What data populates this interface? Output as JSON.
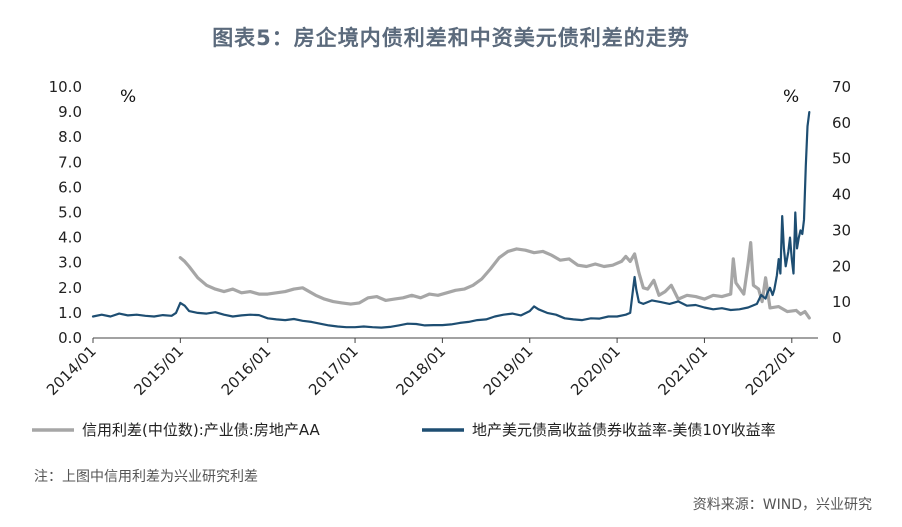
{
  "title": "图表5：房企境内债利差和中资美元债利差的走势",
  "note": "注：上图中信用利差为兴业研究利差",
  "source": "资料来源：WIND，兴业研究",
  "chart_data": {
    "type": "line",
    "left_unit": "%",
    "right_unit": "%",
    "y_left": {
      "range": [
        0,
        10
      ],
      "ticks": [
        "0.0",
        "1.0",
        "2.0",
        "3.0",
        "4.0",
        "5.0",
        "6.0",
        "7.0",
        "8.0",
        "9.0",
        "10.0"
      ]
    },
    "y_right": {
      "range": [
        0,
        70
      ],
      "ticks": [
        "0",
        "10",
        "20",
        "30",
        "40",
        "50",
        "60",
        "70"
      ]
    },
    "x_ticks": [
      {
        "label": "2014/01",
        "t": 2014.0
      },
      {
        "label": "2015/01",
        "t": 2015.0
      },
      {
        "label": "2016/01",
        "t": 2016.0
      },
      {
        "label": "2017/01",
        "t": 2017.0
      },
      {
        "label": "2018/01",
        "t": 2018.0
      },
      {
        "label": "2019/01",
        "t": 2019.0
      },
      {
        "label": "2020/01",
        "t": 2020.0
      },
      {
        "label": "2021/01",
        "t": 2021.0
      },
      {
        "label": "2022/01",
        "t": 2022.0
      }
    ],
    "legend_position": "bottom",
    "series": [
      {
        "name": "信用利差(中位数):产业债:房地产AA",
        "axis": "left",
        "color": "#a6a6a6",
        "points": [
          [
            2015.0,
            3.2
          ],
          [
            2015.05,
            3.05
          ],
          [
            2015.1,
            2.85
          ],
          [
            2015.2,
            2.4
          ],
          [
            2015.3,
            2.1
          ],
          [
            2015.4,
            1.95
          ],
          [
            2015.5,
            1.85
          ],
          [
            2015.6,
            1.95
          ],
          [
            2015.7,
            1.8
          ],
          [
            2015.8,
            1.85
          ],
          [
            2015.9,
            1.75
          ],
          [
            2016.0,
            1.75
          ],
          [
            2016.1,
            1.8
          ],
          [
            2016.2,
            1.85
          ],
          [
            2016.3,
            1.95
          ],
          [
            2016.4,
            2.0
          ],
          [
            2016.45,
            1.9
          ],
          [
            2016.55,
            1.7
          ],
          [
            2016.65,
            1.55
          ],
          [
            2016.75,
            1.45
          ],
          [
            2016.85,
            1.4
          ],
          [
            2016.95,
            1.35
          ],
          [
            2017.05,
            1.4
          ],
          [
            2017.15,
            1.6
          ],
          [
            2017.25,
            1.65
          ],
          [
            2017.35,
            1.5
          ],
          [
            2017.45,
            1.55
          ],
          [
            2017.55,
            1.6
          ],
          [
            2017.65,
            1.7
          ],
          [
            2017.75,
            1.6
          ],
          [
            2017.85,
            1.75
          ],
          [
            2017.95,
            1.7
          ],
          [
            2018.05,
            1.8
          ],
          [
            2018.15,
            1.9
          ],
          [
            2018.25,
            1.95
          ],
          [
            2018.35,
            2.1
          ],
          [
            2018.45,
            2.35
          ],
          [
            2018.55,
            2.75
          ],
          [
            2018.65,
            3.2
          ],
          [
            2018.75,
            3.45
          ],
          [
            2018.85,
            3.55
          ],
          [
            2018.95,
            3.5
          ],
          [
            2019.05,
            3.4
          ],
          [
            2019.15,
            3.45
          ],
          [
            2019.25,
            3.3
          ],
          [
            2019.35,
            3.1
          ],
          [
            2019.45,
            3.15
          ],
          [
            2019.55,
            2.9
          ],
          [
            2019.65,
            2.85
          ],
          [
            2019.75,
            2.95
          ],
          [
            2019.85,
            2.85
          ],
          [
            2019.95,
            2.9
          ],
          [
            2020.05,
            3.05
          ],
          [
            2020.1,
            3.25
          ],
          [
            2020.15,
            3.05
          ],
          [
            2020.2,
            3.35
          ],
          [
            2020.25,
            2.6
          ],
          [
            2020.3,
            2.0
          ],
          [
            2020.35,
            1.95
          ],
          [
            2020.42,
            2.3
          ],
          [
            2020.48,
            1.7
          ],
          [
            2020.55,
            1.85
          ],
          [
            2020.62,
            2.1
          ],
          [
            2020.7,
            1.55
          ],
          [
            2020.8,
            1.7
          ],
          [
            2020.9,
            1.65
          ],
          [
            2021.0,
            1.55
          ],
          [
            2021.1,
            1.7
          ],
          [
            2021.2,
            1.65
          ],
          [
            2021.3,
            1.75
          ],
          [
            2021.33,
            3.15
          ],
          [
            2021.36,
            2.2
          ],
          [
            2021.45,
            1.75
          ],
          [
            2021.5,
            2.95
          ],
          [
            2021.53,
            3.8
          ],
          [
            2021.56,
            2.1
          ],
          [
            2021.62,
            1.95
          ],
          [
            2021.66,
            1.45
          ],
          [
            2021.7,
            2.4
          ],
          [
            2021.75,
            1.2
          ],
          [
            2021.85,
            1.25
          ],
          [
            2021.95,
            1.05
          ],
          [
            2022.05,
            1.1
          ],
          [
            2022.1,
            0.95
          ],
          [
            2022.15,
            1.05
          ],
          [
            2022.2,
            0.8
          ]
        ]
      },
      {
        "name": "地产美元债高收益债券收益率-美债10Y收益率",
        "axis": "right",
        "color": "#1e4e72",
        "points": [
          [
            2014.0,
            6.0
          ],
          [
            2014.1,
            6.5
          ],
          [
            2014.2,
            6.0
          ],
          [
            2014.3,
            6.8
          ],
          [
            2014.4,
            6.3
          ],
          [
            2014.5,
            6.5
          ],
          [
            2014.6,
            6.2
          ],
          [
            2014.7,
            6.0
          ],
          [
            2014.8,
            6.4
          ],
          [
            2014.9,
            6.2
          ],
          [
            2014.95,
            7.0
          ],
          [
            2015.0,
            9.8
          ],
          [
            2015.05,
            9.0
          ],
          [
            2015.1,
            7.5
          ],
          [
            2015.2,
            7.0
          ],
          [
            2015.3,
            6.8
          ],
          [
            2015.4,
            7.2
          ],
          [
            2015.5,
            6.5
          ],
          [
            2015.6,
            6.0
          ],
          [
            2015.7,
            6.3
          ],
          [
            2015.8,
            6.5
          ],
          [
            2015.9,
            6.4
          ],
          [
            2016.0,
            5.5
          ],
          [
            2016.1,
            5.2
          ],
          [
            2016.2,
            5.0
          ],
          [
            2016.3,
            5.3
          ],
          [
            2016.4,
            4.8
          ],
          [
            2016.5,
            4.5
          ],
          [
            2016.6,
            4.0
          ],
          [
            2016.7,
            3.5
          ],
          [
            2016.8,
            3.2
          ],
          [
            2016.9,
            3.0
          ],
          [
            2017.0,
            3.0
          ],
          [
            2017.1,
            3.2
          ],
          [
            2017.2,
            3.0
          ],
          [
            2017.3,
            2.9
          ],
          [
            2017.4,
            3.1
          ],
          [
            2017.5,
            3.5
          ],
          [
            2017.6,
            4.0
          ],
          [
            2017.7,
            3.9
          ],
          [
            2017.8,
            3.5
          ],
          [
            2017.9,
            3.6
          ],
          [
            2018.0,
            3.6
          ],
          [
            2018.1,
            3.8
          ],
          [
            2018.2,
            4.2
          ],
          [
            2018.3,
            4.5
          ],
          [
            2018.4,
            5.0
          ],
          [
            2018.5,
            5.2
          ],
          [
            2018.6,
            6.0
          ],
          [
            2018.7,
            6.5
          ],
          [
            2018.8,
            6.8
          ],
          [
            2018.9,
            6.3
          ],
          [
            2019.0,
            7.5
          ],
          [
            2019.05,
            8.8
          ],
          [
            2019.1,
            8.0
          ],
          [
            2019.2,
            7.0
          ],
          [
            2019.3,
            6.5
          ],
          [
            2019.4,
            5.5
          ],
          [
            2019.5,
            5.2
          ],
          [
            2019.6,
            5.0
          ],
          [
            2019.7,
            5.5
          ],
          [
            2019.8,
            5.4
          ],
          [
            2019.9,
            6.0
          ],
          [
            2020.0,
            6.0
          ],
          [
            2020.1,
            6.5
          ],
          [
            2020.15,
            7.0
          ],
          [
            2020.18,
            13.0
          ],
          [
            2020.2,
            17.0
          ],
          [
            2020.22,
            13.5
          ],
          [
            2020.25,
            10.0
          ],
          [
            2020.3,
            9.5
          ],
          [
            2020.4,
            10.5
          ],
          [
            2020.5,
            10.0
          ],
          [
            2020.6,
            9.5
          ],
          [
            2020.7,
            10.2
          ],
          [
            2020.8,
            9.0
          ],
          [
            2020.9,
            9.2
          ],
          [
            2021.0,
            8.5
          ],
          [
            2021.1,
            8.0
          ],
          [
            2021.2,
            8.3
          ],
          [
            2021.3,
            7.8
          ],
          [
            2021.4,
            8.0
          ],
          [
            2021.5,
            8.5
          ],
          [
            2021.6,
            9.5
          ],
          [
            2021.65,
            12.0
          ],
          [
            2021.7,
            11.0
          ],
          [
            2021.72,
            12.5
          ],
          [
            2021.75,
            14.0
          ],
          [
            2021.78,
            12.0
          ],
          [
            2021.8,
            13.5
          ],
          [
            2021.83,
            17.5
          ],
          [
            2021.85,
            22.0
          ],
          [
            2021.87,
            18.0
          ],
          [
            2021.89,
            34.0
          ],
          [
            2021.91,
            25.0
          ],
          [
            2021.93,
            20.0
          ],
          [
            2021.96,
            24.0
          ],
          [
            2021.98,
            28.0
          ],
          [
            2022.0,
            22.0
          ],
          [
            2022.02,
            18.0
          ],
          [
            2022.04,
            35.0
          ],
          [
            2022.06,
            25.0
          ],
          [
            2022.08,
            28.0
          ],
          [
            2022.1,
            30.0
          ],
          [
            2022.12,
            29.0
          ],
          [
            2022.14,
            33.0
          ],
          [
            2022.16,
            48.0
          ],
          [
            2022.18,
            59.0
          ],
          [
            2022.2,
            63.0
          ]
        ]
      }
    ]
  }
}
